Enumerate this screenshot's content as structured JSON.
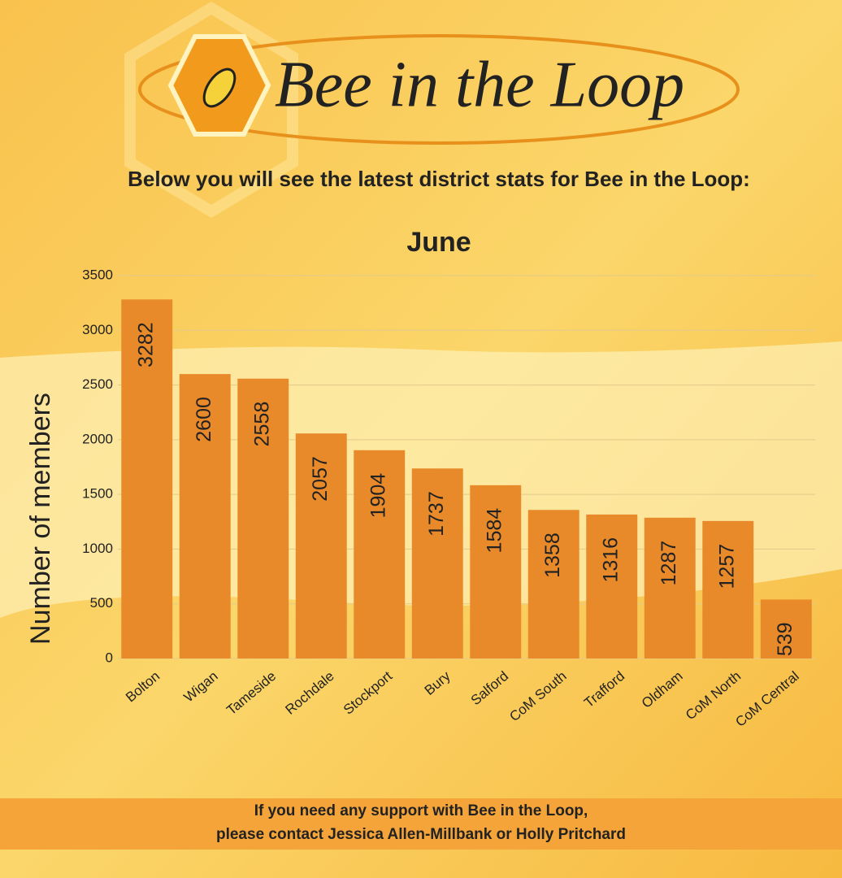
{
  "logo": "Bee in the Loop",
  "intro": "Below you will see the latest district stats for Bee in the Loop:",
  "footer": [
    "If you need any support with Bee in the Loop,",
    "please contact Jessica Allen-Millbank or Holly Pritchard"
  ],
  "chart_data": {
    "type": "bar",
    "title": "June",
    "y_label": "Number of members",
    "categories": [
      "Bolton",
      "Wigan",
      "Tameside",
      "Rochdale",
      "Stockport",
      "Bury",
      "Salford",
      "CoM South",
      "Trafford",
      "Oldham",
      "CoM North",
      "CoM Central"
    ],
    "values": [
      3282,
      2600,
      2558,
      2057,
      1904,
      1737,
      1584,
      1358,
      1316,
      1287,
      1257,
      539
    ],
    "color": "#e8892a",
    "ylim": [
      0,
      3500
    ],
    "yticks": [
      0,
      500,
      1000,
      1500,
      2000,
      2500,
      3000,
      3500
    ],
    "grid": true
  }
}
